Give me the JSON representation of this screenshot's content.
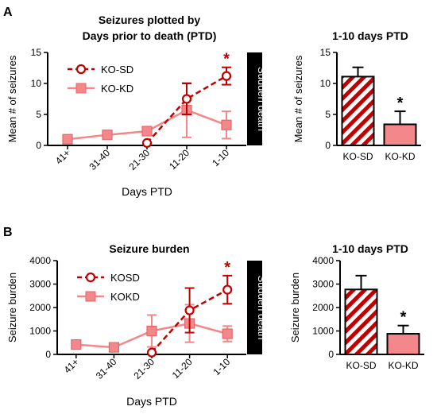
{
  "panels": [
    {
      "letter": "A"
    },
    {
      "letter": "B"
    }
  ],
  "colors": {
    "sd": "#C00000",
    "kd": "#F4878A",
    "kd_fill": "#F4878A",
    "kd_dark": "#E8666B"
  },
  "chart_data": [
    {
      "type": "line",
      "title_lines": [
        "Seizures plotted by",
        "Days prior to death (PTD)"
      ],
      "xlabel": "Days PTD",
      "ylabel": "Mean # of seizures",
      "categories": [
        "41+",
        "31-40",
        "21-30",
        "11-20",
        "1-10"
      ],
      "ylim": [
        0,
        15
      ],
      "yticks": [
        0,
        5,
        10,
        15
      ],
      "annotation_bar": "Sudden death",
      "significance": [
        {
          "category": "1-10",
          "label": "*",
          "color": "#C00000"
        }
      ],
      "series": [
        {
          "name": "KO-SD",
          "style": "dashed-circle",
          "color": "#C00000",
          "points": [
            {
              "x": "21-30",
              "y": 0.4,
              "err": 0
            },
            {
              "x": "11-20",
              "y": 7.5,
              "err": 2.5
            },
            {
              "x": "1-10",
              "y": 11.2,
              "err": 1.4
            }
          ]
        },
        {
          "name": "KO-KD",
          "style": "solid-square",
          "color": "#F4878A",
          "points": [
            {
              "x": "41+",
              "y": 1.0,
              "err": 0
            },
            {
              "x": "31-40",
              "y": 1.7,
              "err": 0
            },
            {
              "x": "21-30",
              "y": 2.3,
              "err": 0
            },
            {
              "x": "11-20",
              "y": 5.7,
              "err": 4.4
            },
            {
              "x": "1-10",
              "y": 3.3,
              "err": 2.2
            }
          ]
        }
      ]
    },
    {
      "type": "bar",
      "title": "1-10 days PTD",
      "ylabel": "Mean # of seizures",
      "categories": [
        "KO-SD",
        "KO-KD"
      ],
      "values": [
        11.1,
        3.4
      ],
      "errors": [
        1.5,
        2.1
      ],
      "fills": [
        "hatched",
        "solid"
      ],
      "ylim": [
        0,
        15
      ],
      "yticks": [
        0,
        5,
        10,
        15
      ],
      "significance": [
        {
          "category": "KO-KD",
          "label": "*"
        }
      ]
    },
    {
      "type": "line",
      "title": "Seizure burden",
      "xlabel": "Days PTD",
      "ylabel": "Seizure burden",
      "categories": [
        "41+",
        "31-40",
        "21-30",
        "11-20",
        "1-10"
      ],
      "ylim": [
        0,
        4000
      ],
      "yticks": [
        0,
        1000,
        2000,
        3000,
        4000
      ],
      "annotation_bar": "Sudden death",
      "significance": [
        {
          "category": "1-10",
          "label": "*",
          "color": "#C00000"
        }
      ],
      "series": [
        {
          "name": "KOSD",
          "style": "dashed-circle",
          "color": "#C00000",
          "points": [
            {
              "x": "21-30",
              "y": 80,
              "err": 0
            },
            {
              "x": "11-20",
              "y": 1880,
              "err": 950
            },
            {
              "x": "1-10",
              "y": 2760,
              "err": 600
            }
          ]
        },
        {
          "name": "KOKD",
          "style": "solid-square",
          "color": "#F4878A",
          "points": [
            {
              "x": "41+",
              "y": 420,
              "err": 0
            },
            {
              "x": "31-40",
              "y": 300,
              "err": 0
            },
            {
              "x": "21-30",
              "y": 1000,
              "err": 680
            },
            {
              "x": "11-20",
              "y": 1320,
              "err": 800
            },
            {
              "x": "1-10",
              "y": 880,
              "err": 330
            }
          ]
        }
      ]
    },
    {
      "type": "bar",
      "title": "1-10 days PTD",
      "ylabel": "Seizure burden",
      "categories": [
        "KO-SD",
        "KO-KD"
      ],
      "values": [
        2770,
        880
      ],
      "errors": [
        590,
        350
      ],
      "fills": [
        "hatched",
        "solid"
      ],
      "ylim": [
        0,
        4000
      ],
      "yticks": [
        0,
        1000,
        2000,
        3000,
        4000
      ],
      "significance": [
        {
          "category": "KO-KD",
          "label": "*"
        }
      ]
    }
  ]
}
